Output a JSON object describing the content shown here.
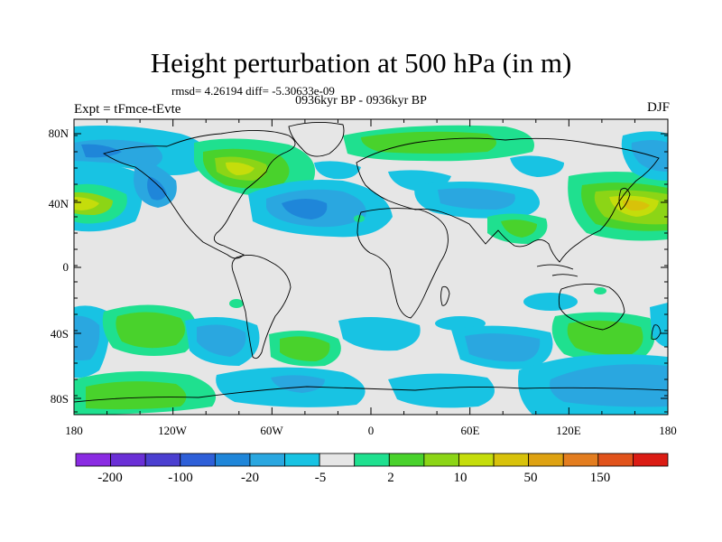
{
  "title": "Height perturbation at 500 hPa (in m)",
  "stats_line": "rmsd= 4.26194 diff= -5.30633e-09",
  "period_line": "0936kyr BP - 0936kyr BP",
  "experiment": "Expt = tFmce-tEvte",
  "season": "DJF",
  "map": {
    "lat_labels": [
      "80N",
      "40N",
      "0",
      "40S",
      "80S"
    ],
    "lon_labels": [
      "180",
      "120W",
      "60W",
      "0",
      "60E",
      "120E",
      "180"
    ]
  },
  "colorbar": {
    "labels": [
      "-200",
      "-100",
      "-20",
      "-5",
      "2",
      "10",
      "50",
      "150"
    ],
    "colors": [
      "#8a2be2",
      "#6a2fd6",
      "#4b3fd0",
      "#2e5fd8",
      "#1f86d9",
      "#2aa7e0",
      "#18c3e3",
      "#e6e6e6",
      "#1fe08f",
      "#49d22c",
      "#8cd516",
      "#c5dd0b",
      "#d8c20a",
      "#dea212",
      "#e37d1f",
      "#e1531b",
      "#db1c14"
    ]
  },
  "colors": {
    "land_grey": "#e6e6e6",
    "cyan": "#18c3e3",
    "light_blue": "#2aa7e0",
    "mid_blue": "#1f86d9",
    "blue": "#2e5fd8",
    "green": "#1fe08f",
    "bright_green": "#49d22c",
    "yellow_green": "#8cd516",
    "yellow": "#c5dd0b",
    "gold": "#d8c20a"
  }
}
